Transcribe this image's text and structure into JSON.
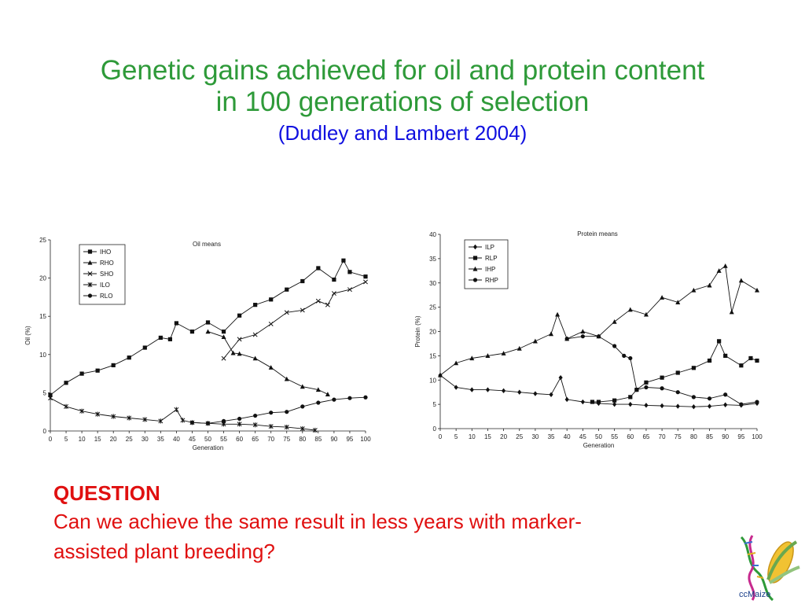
{
  "slide": {
    "title_line1": "Genetic gains achieved for oil and protein content",
    "title_line2": "in 100 generations of selection",
    "citation": "(Dudley and Lambert 2004)",
    "question_heading": "QUESTION",
    "question_line1": "Can we achieve the same result in less years with marker-",
    "question_line2": "assisted plant breeding?",
    "logo_text": "ccMaize",
    "colors": {
      "title": "#2e9a39",
      "citation": "#1010e0",
      "question": "#e01010"
    }
  },
  "chart_data": [
    {
      "type": "line",
      "title": "Oil means",
      "xlabel": "Generation",
      "ylabel": "Oil (%)",
      "xlim": [
        0,
        100
      ],
      "ylim": [
        0,
        25
      ],
      "xticks": [
        0,
        5,
        10,
        15,
        20,
        25,
        30,
        35,
        40,
        45,
        50,
        55,
        60,
        65,
        70,
        75,
        80,
        85,
        90,
        95,
        100
      ],
      "yticks": [
        0,
        5,
        10,
        15,
        20,
        25
      ],
      "legend_position": "top-left",
      "series": [
        {
          "name": "IHO",
          "marker": "square",
          "x": [
            0,
            5,
            10,
            15,
            20,
            25,
            30,
            35,
            38,
            40,
            45,
            50,
            55,
            60,
            65,
            70,
            75,
            80,
            85,
            90,
            93,
            95,
            100
          ],
          "y": [
            4.7,
            6.3,
            7.5,
            7.9,
            8.6,
            9.6,
            10.9,
            12.2,
            12.0,
            14.1,
            13.0,
            14.2,
            13.0,
            15.1,
            16.5,
            17.2,
            18.5,
            19.6,
            21.3,
            19.8,
            22.3,
            20.8,
            20.2
          ]
        },
        {
          "name": "RHO",
          "marker": "triangle",
          "x": [
            50,
            55,
            58,
            60,
            65,
            70,
            75,
            80,
            85,
            88
          ],
          "y": [
            13.0,
            12.3,
            10.2,
            10.1,
            9.5,
            8.3,
            6.8,
            5.8,
            5.4,
            4.8
          ]
        },
        {
          "name": "SHO",
          "marker": "x",
          "x": [
            55,
            60,
            65,
            70,
            75,
            80,
            85,
            88,
            90,
            95,
            100
          ],
          "y": [
            9.5,
            12.0,
            12.6,
            14.0,
            15.5,
            15.8,
            17.0,
            16.5,
            18.0,
            18.5,
            19.5
          ]
        },
        {
          "name": "ILO",
          "marker": "star",
          "x": [
            0,
            5,
            10,
            15,
            20,
            25,
            30,
            35,
            40,
            42,
            45,
            50,
            55,
            60,
            65,
            70,
            75,
            80,
            84
          ],
          "y": [
            4.3,
            3.2,
            2.6,
            2.2,
            1.9,
            1.7,
            1.5,
            1.3,
            2.8,
            1.4,
            1.1,
            1.0,
            0.9,
            0.9,
            0.8,
            0.6,
            0.5,
            0.3,
            0.1
          ]
        },
        {
          "name": "RLO",
          "marker": "circle",
          "x": [
            45,
            50,
            55,
            60,
            65,
            70,
            75,
            80,
            85,
            90,
            95,
            100
          ],
          "y": [
            1.1,
            1.0,
            1.3,
            1.6,
            2.0,
            2.4,
            2.5,
            3.2,
            3.7,
            4.1,
            4.3,
            4.4
          ]
        }
      ]
    },
    {
      "type": "line",
      "title": "Protein means",
      "xlabel": "Generation",
      "ylabel": "Protein (%)",
      "xlim": [
        0,
        100
      ],
      "ylim": [
        0,
        40
      ],
      "xticks": [
        0,
        5,
        10,
        15,
        20,
        25,
        30,
        35,
        40,
        45,
        50,
        55,
        60,
        65,
        70,
        75,
        80,
        85,
        90,
        95,
        100
      ],
      "yticks": [
        0,
        5,
        10,
        15,
        20,
        25,
        30,
        35,
        40
      ],
      "legend_position": "top-left",
      "series": [
        {
          "name": "ILP",
          "marker": "diamond",
          "x": [
            0,
            5,
            10,
            15,
            20,
            25,
            30,
            35,
            38,
            40,
            45,
            50,
            55,
            60,
            65,
            70,
            75,
            80,
            85,
            90,
            95,
            100
          ],
          "y": [
            11,
            8.5,
            8.0,
            8.0,
            7.8,
            7.5,
            7.2,
            7.0,
            10.5,
            6.0,
            5.5,
            5.2,
            5.0,
            5.0,
            4.8,
            4.7,
            4.6,
            4.5,
            4.6,
            4.9,
            4.8,
            5.2
          ]
        },
        {
          "name": "RLP",
          "marker": "square",
          "x": [
            48,
            50,
            55,
            60,
            62,
            65,
            70,
            75,
            80,
            85,
            88,
            90,
            95,
            98,
            100
          ],
          "y": [
            5.5,
            5.5,
            5.8,
            6.5,
            8.0,
            9.5,
            10.5,
            11.5,
            12.5,
            14.0,
            18.0,
            15.0,
            13.0,
            14.5,
            14.0
          ]
        },
        {
          "name": "IHP",
          "marker": "triangle",
          "x": [
            0,
            5,
            10,
            15,
            20,
            25,
            30,
            35,
            37,
            40,
            45,
            50,
            55,
            60,
            65,
            70,
            75,
            80,
            85,
            88,
            90,
            92,
            95,
            100
          ],
          "y": [
            11,
            13.5,
            14.5,
            15.0,
            15.5,
            16.5,
            18.0,
            19.5,
            23.5,
            18.5,
            20.0,
            19.0,
            22.0,
            24.5,
            23.5,
            27.0,
            26.0,
            28.5,
            29.5,
            32.5,
            33.5,
            24.0,
            30.5,
            28.5
          ]
        },
        {
          "name": "RHP",
          "marker": "circle",
          "x": [
            40,
            45,
            50,
            55,
            58,
            60,
            62,
            65,
            70,
            75,
            80,
            85,
            90,
            95,
            100
          ],
          "y": [
            18.5,
            19.0,
            19.0,
            17.0,
            15.0,
            14.5,
            8.0,
            8.5,
            8.3,
            7.5,
            6.5,
            6.2,
            7.0,
            5.0,
            5.5
          ]
        }
      ]
    }
  ]
}
